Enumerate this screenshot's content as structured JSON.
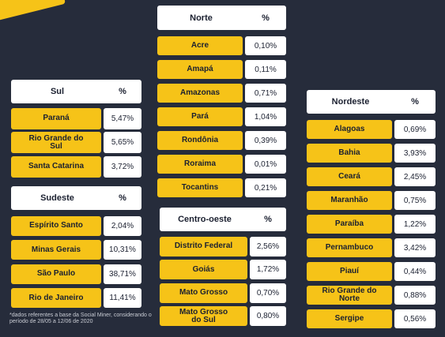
{
  "colors": {
    "background": "#262c3b",
    "accent": "#f6c318",
    "cell": "#ffffff",
    "text": "#1b2030"
  },
  "percent_label": "%",
  "sul": {
    "title": "Sul",
    "rows": [
      {
        "name": "Paraná",
        "pct": "5,47%"
      },
      {
        "name": "Rio Grande do Sul",
        "pct": "5,65%"
      },
      {
        "name": "Santa Catarina",
        "pct": "3,72%"
      }
    ]
  },
  "sudeste": {
    "title": "Sudeste",
    "rows": [
      {
        "name": "Espírito Santo",
        "pct": "2,04%"
      },
      {
        "name": "Minas Gerais",
        "pct": "10,31%"
      },
      {
        "name": "São Paulo",
        "pct": "38,71%"
      },
      {
        "name": "Rio de Janeiro",
        "pct": "11,41%"
      }
    ]
  },
  "norte": {
    "title": "Norte",
    "rows": [
      {
        "name": "Acre",
        "pct": "0,10%"
      },
      {
        "name": "Amapá",
        "pct": "0,11%"
      },
      {
        "name": "Amazonas",
        "pct": "0,71%"
      },
      {
        "name": "Pará",
        "pct": "1,04%"
      },
      {
        "name": "Rondônia",
        "pct": "0,39%"
      },
      {
        "name": "Roraima",
        "pct": "0,01%"
      },
      {
        "name": "Tocantins",
        "pct": "0,21%"
      }
    ]
  },
  "centro_oeste": {
    "title": "Centro-oeste",
    "rows": [
      {
        "name": "Distrito Federal",
        "pct": "2,56%"
      },
      {
        "name": "Goiás",
        "pct": "1,72%"
      },
      {
        "name": "Mato Grosso",
        "pct": "0,70%"
      },
      {
        "name": "Mato Grosso do Sul",
        "pct": "0,80%"
      }
    ]
  },
  "nordeste": {
    "title": "Nordeste",
    "rows": [
      {
        "name": "Alagoas",
        "pct": "0,69%"
      },
      {
        "name": "Bahia",
        "pct": "3,93%"
      },
      {
        "name": "Ceará",
        "pct": "2,45%"
      },
      {
        "name": "Maranhão",
        "pct": "0,75%"
      },
      {
        "name": "Paraíba",
        "pct": "1,22%"
      },
      {
        "name": "Pernambuco",
        "pct": "3,42%"
      },
      {
        "name": "Piauí",
        "pct": "0,44%"
      },
      {
        "name": "Rio Grande do Norte",
        "pct": "0,88%"
      },
      {
        "name": "Sergipe",
        "pct": "0,56%"
      }
    ]
  },
  "footnote": "*dados referentes a base da Social Miner, considerando o período de 28/05 a 12/06 de 2020"
}
